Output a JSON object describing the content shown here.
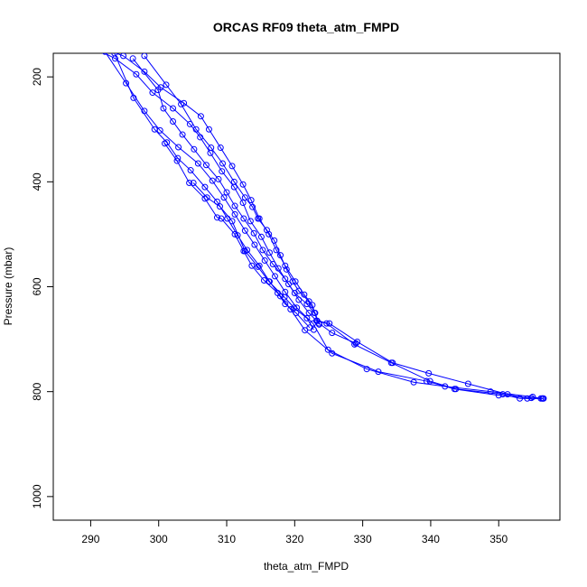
{
  "chart_data": {
    "type": "line",
    "title": "ORCAS RF09 theta_atm_FMPD",
    "xlabel": "theta_atm_FMPD",
    "ylabel": "Pressure (mbar)",
    "xlim": [
      284.5,
      359
    ],
    "ylim": [
      1045,
      155
    ],
    "y_reversed": true,
    "grid": false,
    "xticks": [
      290,
      300,
      310,
      320,
      330,
      340,
      350
    ],
    "yticks": [
      200,
      400,
      600,
      800,
      1000
    ],
    "series_color": "#0000ff",
    "series": [
      {
        "values": [
          [
            290.6,
            140
          ],
          [
            294.8,
            160
          ],
          [
            297.9,
            190
          ],
          [
            300.3,
            220
          ],
          [
            303.7,
            250
          ],
          [
            306.2,
            275
          ],
          [
            307.4,
            300
          ],
          [
            309.1,
            335
          ],
          [
            310.8,
            370
          ],
          [
            312.4,
            405
          ],
          [
            313.6,
            435
          ],
          [
            314.8,
            470
          ],
          [
            316.2,
            500
          ],
          [
            317.3,
            530
          ],
          [
            318.6,
            560
          ],
          [
            320.1,
            590
          ],
          [
            321.4,
            615
          ],
          [
            322.6,
            635
          ],
          [
            323.3,
            665
          ],
          [
            325.1,
            670
          ],
          [
            329.2,
            705
          ],
          [
            334.4,
            745
          ],
          [
            339.7,
            765
          ],
          [
            345.5,
            785
          ],
          [
            351.3,
            805
          ],
          [
            354.2,
            813
          ],
          [
            356.4,
            813
          ]
        ]
      },
      {
        "values": [
          [
            289.8,
            140
          ],
          [
            293.6,
            165
          ],
          [
            296.7,
            195
          ],
          [
            299.1,
            230
          ],
          [
            302.1,
            260
          ],
          [
            304.6,
            290
          ],
          [
            306.1,
            315
          ],
          [
            307.6,
            345
          ],
          [
            309.3,
            380
          ],
          [
            311.1,
            410
          ],
          [
            312.4,
            440
          ],
          [
            313.5,
            475
          ],
          [
            315.1,
            505
          ],
          [
            316.3,
            535
          ],
          [
            317.6,
            565
          ],
          [
            319.1,
            595
          ],
          [
            320.6,
            625
          ],
          [
            322.1,
            650
          ],
          [
            323.2,
            665
          ],
          [
            324.7,
            670
          ],
          [
            328.8,
            710
          ],
          [
            334.2,
            745
          ],
          [
            339.9,
            780
          ],
          [
            343.7,
            795
          ],
          [
            350.6,
            805
          ],
          [
            353.1,
            813
          ],
          [
            356.6,
            813
          ]
        ]
      },
      {
        "values": [
          [
            292.1,
            152
          ],
          [
            295.2,
            212
          ],
          [
            297.9,
            265
          ],
          [
            300.2,
            302
          ],
          [
            302.9,
            334
          ],
          [
            305.8,
            365
          ],
          [
            307.9,
            398
          ],
          [
            309.6,
            430
          ],
          [
            311.2,
            462
          ],
          [
            312.7,
            493
          ],
          [
            314.1,
            520
          ],
          [
            315.6,
            550
          ],
          [
            317.1,
            580
          ],
          [
            318.6,
            610
          ],
          [
            320.3,
            640
          ],
          [
            322.7,
            670
          ],
          [
            324.9,
            720
          ],
          [
            330.6,
            757
          ],
          [
            337.5,
            782
          ],
          [
            342.1,
            790
          ],
          [
            348.8,
            800
          ],
          [
            355.0,
            810
          ],
          [
            356.2,
            813
          ]
        ]
      },
      {
        "values": [
          [
            293.5,
            155
          ],
          [
            296.3,
            240
          ],
          [
            299.4,
            300
          ],
          [
            301.2,
            325
          ],
          [
            302.8,
            355
          ],
          [
            304.7,
            378
          ],
          [
            306.8,
            410
          ],
          [
            308.6,
            438
          ],
          [
            310.1,
            470
          ],
          [
            311.6,
            502
          ],
          [
            313.0,
            530
          ],
          [
            314.8,
            560
          ],
          [
            316.3,
            590
          ],
          [
            317.9,
            618
          ],
          [
            319.4,
            643
          ],
          [
            321.5,
            683
          ],
          [
            325.5,
            727
          ],
          [
            332.3,
            762
          ],
          [
            339.4,
            780
          ],
          [
            343.5,
            795
          ],
          [
            350.0,
            807
          ],
          [
            354.8,
            812
          ],
          [
            356.5,
            813
          ]
        ]
      },
      {
        "values": [
          [
            296.2,
            165
          ],
          [
            299.9,
            225
          ],
          [
            300.7,
            260
          ],
          [
            302.1,
            285
          ],
          [
            303.5,
            310
          ],
          [
            305.2,
            338
          ],
          [
            307.0,
            368
          ],
          [
            308.8,
            395
          ],
          [
            310.0,
            420
          ],
          [
            311.2,
            446
          ],
          [
            312.5,
            470
          ],
          [
            314.0,
            498
          ],
          [
            315.3,
            530
          ],
          [
            316.8,
            557
          ],
          [
            318.6,
            585
          ],
          [
            320.0,
            612
          ],
          [
            321.8,
            633
          ],
          [
            322.9,
            650
          ],
          [
            323.6,
            670
          ],
          [
            325.5,
            688
          ],
          [
            329.0,
            708
          ]
        ]
      },
      {
        "values": [
          [
            297.9,
            160
          ],
          [
            301.1,
            215
          ],
          [
            303.3,
            252
          ],
          [
            305.5,
            300
          ],
          [
            307.7,
            335
          ],
          [
            309.4,
            365
          ],
          [
            311.1,
            400
          ],
          [
            312.7,
            430
          ],
          [
            313.8,
            448
          ],
          [
            314.6,
            470
          ],
          [
            315.9,
            492
          ],
          [
            317.0,
            512
          ],
          [
            317.9,
            540
          ],
          [
            318.8,
            567
          ],
          [
            319.7,
            590
          ],
          [
            320.6,
            608
          ],
          [
            322.1,
            628
          ],
          [
            323.0,
            650
          ],
          [
            323.6,
            672
          ]
        ]
      },
      {
        "values": [
          [
            300.9,
            327
          ],
          [
            302.7,
            360
          ],
          [
            304.5,
            402
          ],
          [
            306.8,
            432
          ],
          [
            308.6,
            468
          ],
          [
            309.2,
            470
          ],
          [
            311.2,
            500
          ],
          [
            312.5,
            532
          ],
          [
            313.7,
            560
          ],
          [
            315.5,
            588
          ],
          [
            317.5,
            612
          ],
          [
            318.6,
            633
          ],
          [
            320.2,
            650
          ],
          [
            322.2,
            678
          ]
        ]
      },
      {
        "values": [
          [
            305.1,
            402
          ],
          [
            307.1,
            430
          ],
          [
            309.0,
            447
          ],
          [
            310.8,
            475
          ],
          [
            312.7,
            532
          ],
          [
            314.6,
            562
          ],
          [
            316.2,
            590
          ],
          [
            318.5,
            620
          ],
          [
            319.9,
            640
          ],
          [
            321.8,
            660
          ],
          [
            322.8,
            682
          ]
        ]
      }
    ]
  }
}
